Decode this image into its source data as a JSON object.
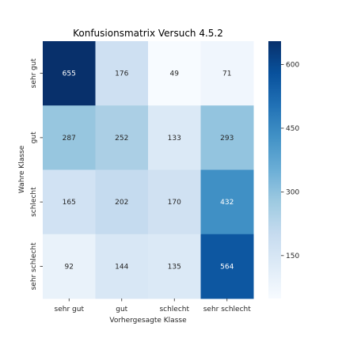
{
  "chart_data": {
    "type": "heatmap",
    "title": "Konfusionsmatrix Versuch 4.5.2",
    "xlabel": "Vorhergesagte Klasse",
    "ylabel": "Wahre Klasse",
    "x_categories": [
      "sehr gut",
      "gut",
      "schlecht",
      "sehr schlecht"
    ],
    "y_categories": [
      "sehr gut",
      "gut",
      "schlecht",
      "sehr schlecht"
    ],
    "values": [
      [
        655,
        176,
        49,
        71
      ],
      [
        287,
        252,
        133,
        293
      ],
      [
        165,
        202,
        170,
        432
      ],
      [
        92,
        144,
        135,
        564
      ]
    ],
    "colormap": "Blues",
    "colorbar": {
      "min": 49,
      "max": 655,
      "ticks": [
        150,
        300,
        450,
        600
      ],
      "tick_labels": [
        "150",
        "300",
        "450",
        "600"
      ]
    },
    "colors": {
      "light_text": "#ffffff",
      "dark_text": "#262626"
    }
  }
}
